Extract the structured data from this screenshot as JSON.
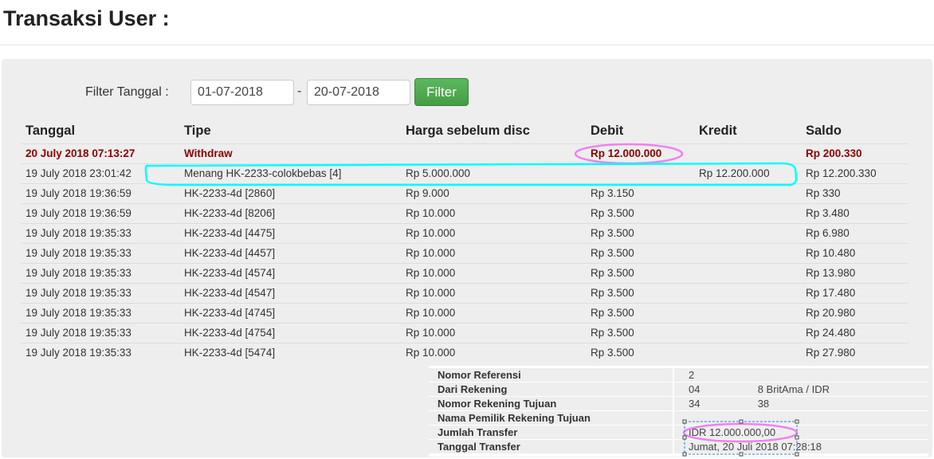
{
  "page_title": "Transaksi User :",
  "filter": {
    "label": "Filter Tanggal :",
    "from": "01-07-2018",
    "separator": "-",
    "to": "20-07-2018",
    "button": "Filter"
  },
  "table": {
    "headers": [
      "Tanggal",
      "Tipe",
      "Harga sebelum disc",
      "Debit",
      "Kredit",
      "Saldo"
    ],
    "rows": [
      {
        "tanggal": "20 July 2018 07:13:27",
        "tipe": "Withdraw",
        "harga": "",
        "debit": "Rp 12.000.000",
        "kredit": "",
        "saldo": "Rp 200.330",
        "highlight": true
      },
      {
        "tanggal": "19 July 2018 23:01:42",
        "tipe": "Menang HK-2233-colokbebas [4]",
        "harga": "Rp 5.000.000",
        "debit": "",
        "kredit": "Rp 12.200.000",
        "saldo": "Rp 12.200.330"
      },
      {
        "tanggal": "19 July 2018 19:36:59",
        "tipe": "HK-2233-4d [2860]",
        "harga": "Rp 9.000",
        "debit": "Rp 3.150",
        "kredit": "",
        "saldo": "Rp 330"
      },
      {
        "tanggal": "19 July 2018 19:36:59",
        "tipe": "HK-2233-4d [8206]",
        "harga": "Rp 10.000",
        "debit": "Rp 3.500",
        "kredit": "",
        "saldo": "Rp 3.480"
      },
      {
        "tanggal": "19 July 2018 19:35:33",
        "tipe": "HK-2233-4d [4475]",
        "harga": "Rp 10.000",
        "debit": "Rp 3.500",
        "kredit": "",
        "saldo": "Rp 6.980"
      },
      {
        "tanggal": "19 July 2018 19:35:33",
        "tipe": "HK-2233-4d [4457]",
        "harga": "Rp 10.000",
        "debit": "Rp 3.500",
        "kredit": "",
        "saldo": "Rp 10.480"
      },
      {
        "tanggal": "19 July 2018 19:35:33",
        "tipe": "HK-2233-4d [4574]",
        "harga": "Rp 10.000",
        "debit": "Rp 3.500",
        "kredit": "",
        "saldo": "Rp 13.980"
      },
      {
        "tanggal": "19 July 2018 19:35:33",
        "tipe": "HK-2233-4d [4547]",
        "harga": "Rp 10.000",
        "debit": "Rp 3.500",
        "kredit": "",
        "saldo": "Rp 17.480"
      },
      {
        "tanggal": "19 July 2018 19:35:33",
        "tipe": "HK-2233-4d [4745]",
        "harga": "Rp 10.000",
        "debit": "Rp 3.500",
        "kredit": "",
        "saldo": "Rp 20.980"
      },
      {
        "tanggal": "19 July 2018 19:35:33",
        "tipe": "HK-2233-4d [4754]",
        "harga": "Rp 10.000",
        "debit": "Rp 3.500",
        "kredit": "",
        "saldo": "Rp 24.480"
      },
      {
        "tanggal": "19 July 2018 19:35:33",
        "tipe": "HK-2233-4d [5474]",
        "harga": "Rp 10.000",
        "debit": "Rp 3.500",
        "kredit": "",
        "saldo": "Rp 27.980"
      }
    ]
  },
  "transfer_details": [
    {
      "label": "Nomor Referensi",
      "value": "2"
    },
    {
      "label": "Dari Rekening",
      "value": "04                    8 BritAma / IDR"
    },
    {
      "label": "Nomor Rekening Tujuan",
      "value": "34                    38"
    },
    {
      "label": "Nama Pemilik Rekening Tujuan",
      "value": ""
    },
    {
      "label": "Jumlah Transfer",
      "value": "IDR 12.000.000,00"
    },
    {
      "label": "Tanggal Transfer",
      "value": "Jumat, 20 Juli 2018 07:28:18"
    }
  ],
  "colors": {
    "highlight_row": "#8b0000",
    "filter_button": "#5cb85c",
    "annotation_pink": "#ee82ee",
    "annotation_cyan": "#00ffff"
  }
}
